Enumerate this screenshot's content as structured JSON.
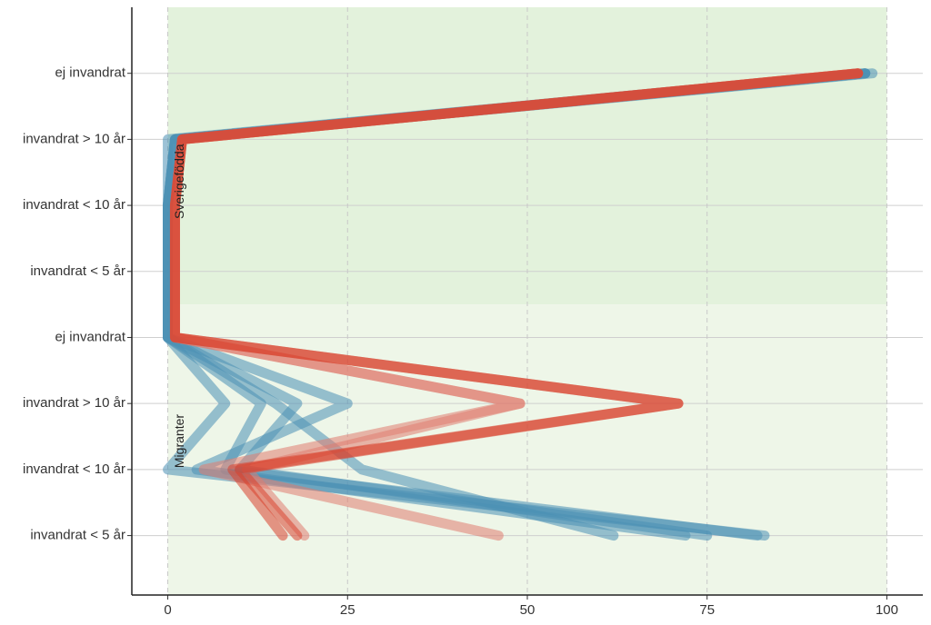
{
  "chart_data": {
    "type": "line",
    "categories": [
      "ej invandrat",
      "invandrat > 10 år",
      "invandrat < 10 år",
      "invandrat < 5 år",
      "ej invandrat",
      "invandrat > 10 år",
      "invandrat < 10 år",
      "invandrat < 5 år"
    ],
    "annotations": [
      "Sverigefödda",
      "Migranter"
    ],
    "xlim": [
      -5,
      105
    ],
    "xticks": [
      0,
      25,
      50,
      75,
      100
    ],
    "grid": true,
    "series": [
      {
        "color": "#4a8fb5",
        "values": [
          98,
          1,
          0,
          0,
          0,
          8,
          0,
          83
        ]
      },
      {
        "color": "#4a8fb5",
        "values": [
          97,
          1,
          0,
          0,
          0,
          25,
          4,
          72
        ]
      },
      {
        "color": "#4a8fb5",
        "values": [
          97,
          1,
          0,
          0,
          0,
          18,
          10,
          75
        ]
      },
      {
        "color": "#4a8fb5",
        "values": [
          97,
          0,
          0,
          0,
          0,
          15,
          27,
          62
        ]
      },
      {
        "color": "#4a8fb5",
        "values": [
          97,
          1,
          0,
          0,
          0,
          13,
          8,
          82
        ]
      },
      {
        "color": "#e07b70",
        "values": [
          96,
          2,
          1,
          1,
          1,
          49,
          5,
          46
        ]
      },
      {
        "color": "#e07b70",
        "values": [
          96,
          2,
          1,
          1,
          1,
          49,
          11,
          19
        ]
      },
      {
        "color": "#d9412e",
        "values": [
          96,
          2,
          1,
          1,
          1,
          71,
          9,
          16
        ]
      },
      {
        "color": "#d9412e",
        "values": [
          96,
          2,
          1,
          1,
          1,
          71,
          10,
          18
        ]
      }
    ]
  }
}
